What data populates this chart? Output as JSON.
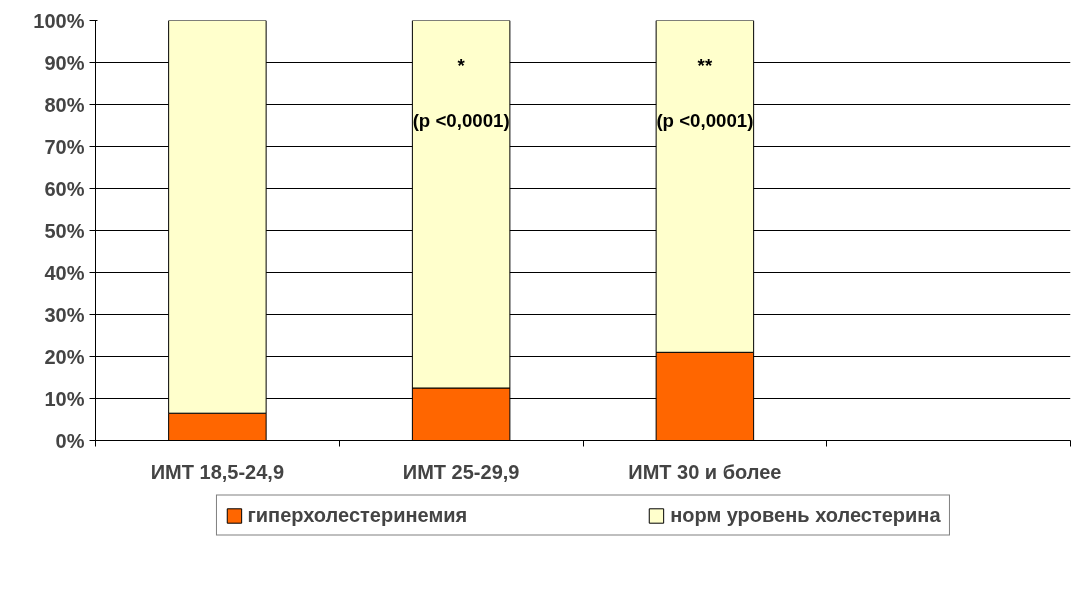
{
  "chart_data": {
    "type": "bar",
    "stacked": true,
    "categories": [
      "ИМТ 18,5-24,9",
      "ИМТ 25-29,9",
      "ИМТ 30 и более",
      null
    ],
    "series": [
      {
        "name": "гиперхолестеринемия",
        "color": "#ff6600",
        "values": [
          6.5,
          12.5,
          21,
          null
        ]
      },
      {
        "name": "норм уровень холестерина",
        "color": "#ffffcc",
        "values": [
          93.5,
          87.5,
          79,
          null
        ]
      }
    ],
    "ylim": [
      0,
      100
    ],
    "yticks": [
      {
        "value": 0,
        "label": "0%"
      },
      {
        "value": 10,
        "label": "10%"
      },
      {
        "value": 20,
        "label": "20%"
      },
      {
        "value": 30,
        "label": "30%"
      },
      {
        "value": 40,
        "label": "40%"
      },
      {
        "value": 50,
        "label": "50%"
      },
      {
        "value": 60,
        "label": "60%"
      },
      {
        "value": 70,
        "label": "70%"
      },
      {
        "value": 80,
        "label": "80%"
      },
      {
        "value": 90,
        "label": "90%"
      },
      {
        "value": 100,
        "label": "100%"
      }
    ],
    "grid": "y",
    "legend": "bottom",
    "annotations": [
      "*",
      "(p <0,0001)",
      "**",
      "(p <0,0001)"
    ]
  }
}
